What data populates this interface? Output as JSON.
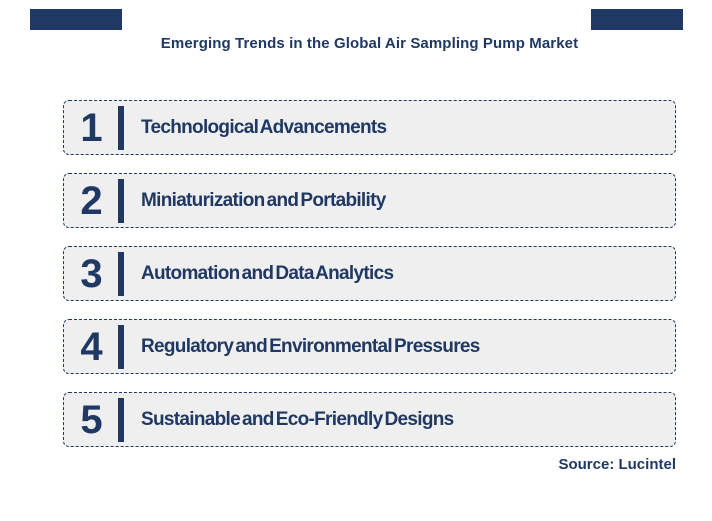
{
  "page": {
    "title": "Emerging Trends in the Global Air Sampling Pump Market",
    "source": "Source: Lucintel"
  },
  "colors": {
    "navy": "#1f3864",
    "row_bg": "#efefef",
    "background": "#ffffff"
  },
  "trends": [
    {
      "number": "1",
      "label": "Technological Advancements"
    },
    {
      "number": "2",
      "label": "Miniaturization and Portability"
    },
    {
      "number": "3",
      "label": "Automation and Data Analytics"
    },
    {
      "number": "4",
      "label": "Regulatory and Environmental Pressures"
    },
    {
      "number": "5",
      "label": "Sustainable and Eco-Friendly Designs"
    }
  ]
}
